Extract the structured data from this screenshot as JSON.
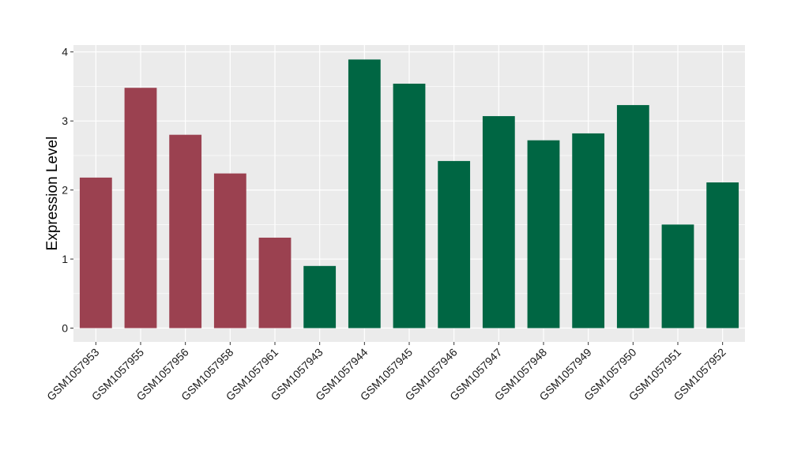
{
  "chart_data": {
    "type": "bar",
    "title": "",
    "xlabel": "",
    "ylabel": "Expression Level",
    "ylim": [
      -0.2,
      4.1
    ],
    "yticks": [
      0,
      1,
      2,
      3,
      4
    ],
    "grid": true,
    "legend": "none",
    "colors": {
      "group_a": "#9B4150",
      "group_b": "#006643",
      "panel_bg": "#EBEBEB",
      "grid": "#FFFFFF"
    },
    "categories": [
      "GSM1057953",
      "GSM1057955",
      "GSM1057956",
      "GSM1057958",
      "GSM1057961",
      "GSM1057943",
      "GSM1057944",
      "GSM1057945",
      "GSM1057946",
      "GSM1057947",
      "GSM1057948",
      "GSM1057949",
      "GSM1057950",
      "GSM1057951",
      "GSM1057952"
    ],
    "values": [
      2.18,
      3.48,
      2.8,
      2.24,
      1.31,
      0.9,
      3.89,
      3.54,
      2.42,
      3.07,
      2.72,
      2.82,
      3.23,
      1.5,
      2.11
    ],
    "groups": [
      "a",
      "a",
      "a",
      "a",
      "a",
      "b",
      "b",
      "b",
      "b",
      "b",
      "b",
      "b",
      "b",
      "b",
      "b"
    ]
  }
}
